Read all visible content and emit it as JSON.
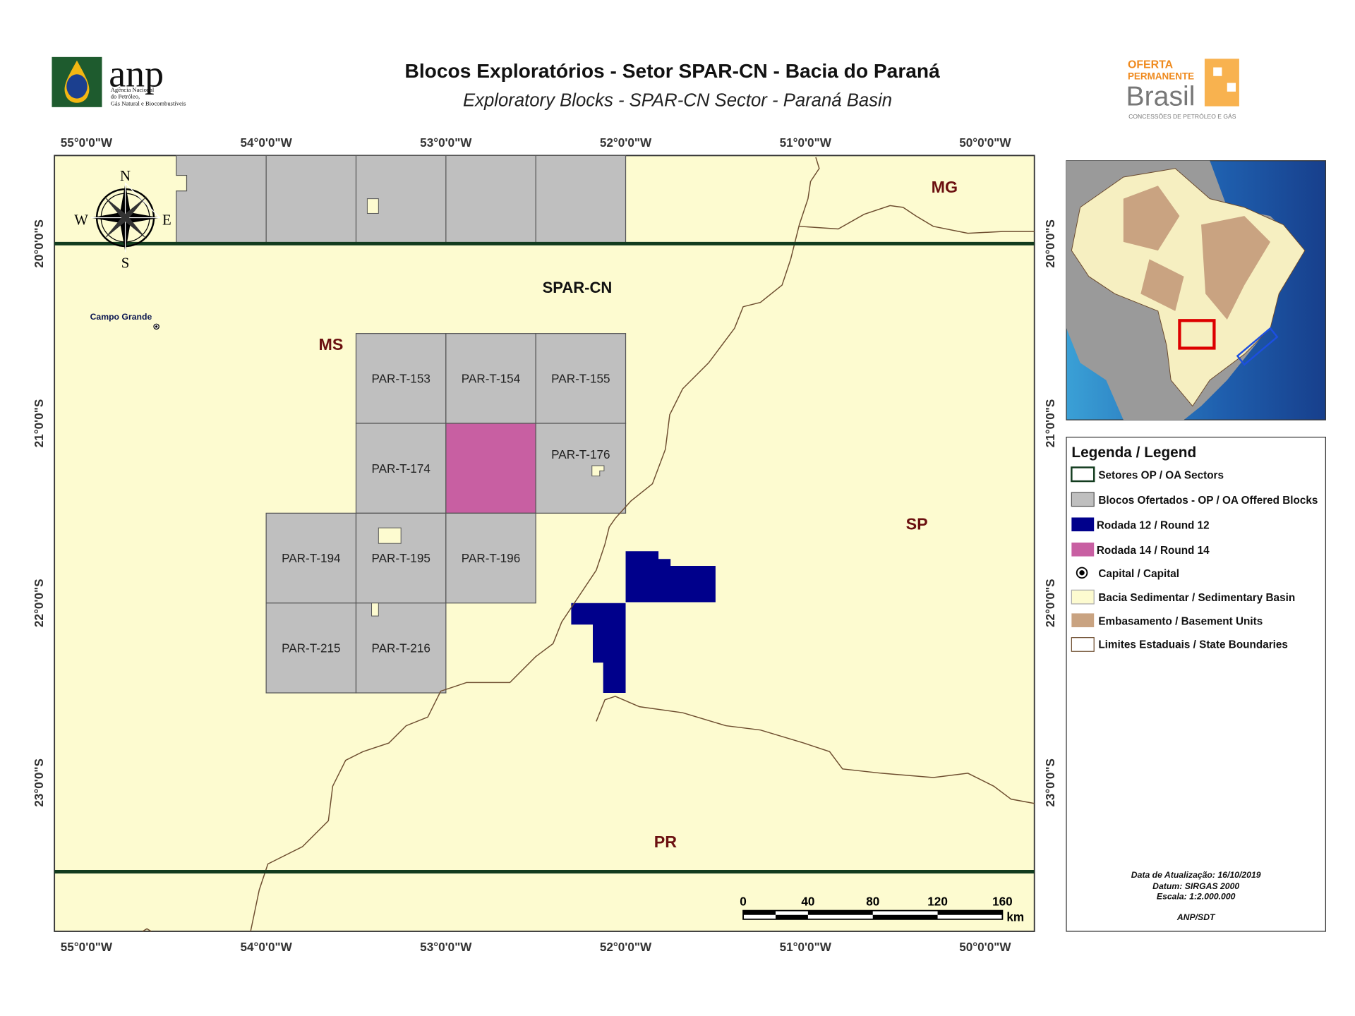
{
  "header": {
    "title": "Blocos Exploratórios - Setor SPAR-CN - Bacia do Paraná",
    "subtitle": "Exploratory Blocks - SPAR-CN  Sector - Paraná Basin",
    "anp_logo": {
      "name": "anp",
      "lines": [
        "Agência Nacional",
        "do Petróleo,",
        "Gás Natural e Biocombustíveis"
      ]
    },
    "oferta_logo": {
      "line1": "OFERTA",
      "line2": "PERMANENTE",
      "line3": "Brasil",
      "tagline": "CONCESSÕES DE PETRÓLEO E GÁS"
    }
  },
  "map": {
    "longitudes": [
      "55°0'0\"W",
      "54°0'0\"W",
      "53°0'0\"W",
      "52°0'0\"W",
      "51°0'0\"W",
      "50°0'0\"W"
    ],
    "latitudes": [
      "20°0'0\"S",
      "21°0'0\"S",
      "22°0'0\"S",
      "23°0'0\"S"
    ],
    "compass": {
      "n": "N",
      "s": "S",
      "e": "E",
      "w": "W"
    },
    "labels": {
      "mg": "MG",
      "sector": "SPAR-CN",
      "ms": "MS",
      "sp": "SP",
      "pr": "PR",
      "capital": "Campo Grande"
    },
    "blocks": [
      "PAR-T-153",
      "PAR-T-154",
      "PAR-T-155",
      "PAR-T-174",
      "PAR-T-176",
      "PAR-T-194",
      "PAR-T-195",
      "PAR-T-196",
      "PAR-T-215",
      "PAR-T-216"
    ],
    "scale": {
      "ticks": [
        0,
        40,
        80,
        120,
        160
      ],
      "unit": "km"
    }
  },
  "legend": {
    "title": "Legenda / Legend",
    "items": [
      "Setores OP / OA Sectors",
      "Blocos Ofertados - OP / OA Offered Blocks",
      "Rodada 12 / Round 12",
      "Rodada 14 / Round 14",
      "Capital / Capital",
      "Bacia Sedimentar / Sedimentary Basin",
      "Embasamento / Basement Units",
      "Limites Estaduais / State Boundaries"
    ]
  },
  "footer": {
    "updated": "Data de Atualização: 16/10/2019",
    "datum": "Datum: SIRGAS 2000",
    "scale": "Escala: 1:2.000.000",
    "credit": "ANP/SDT"
  }
}
